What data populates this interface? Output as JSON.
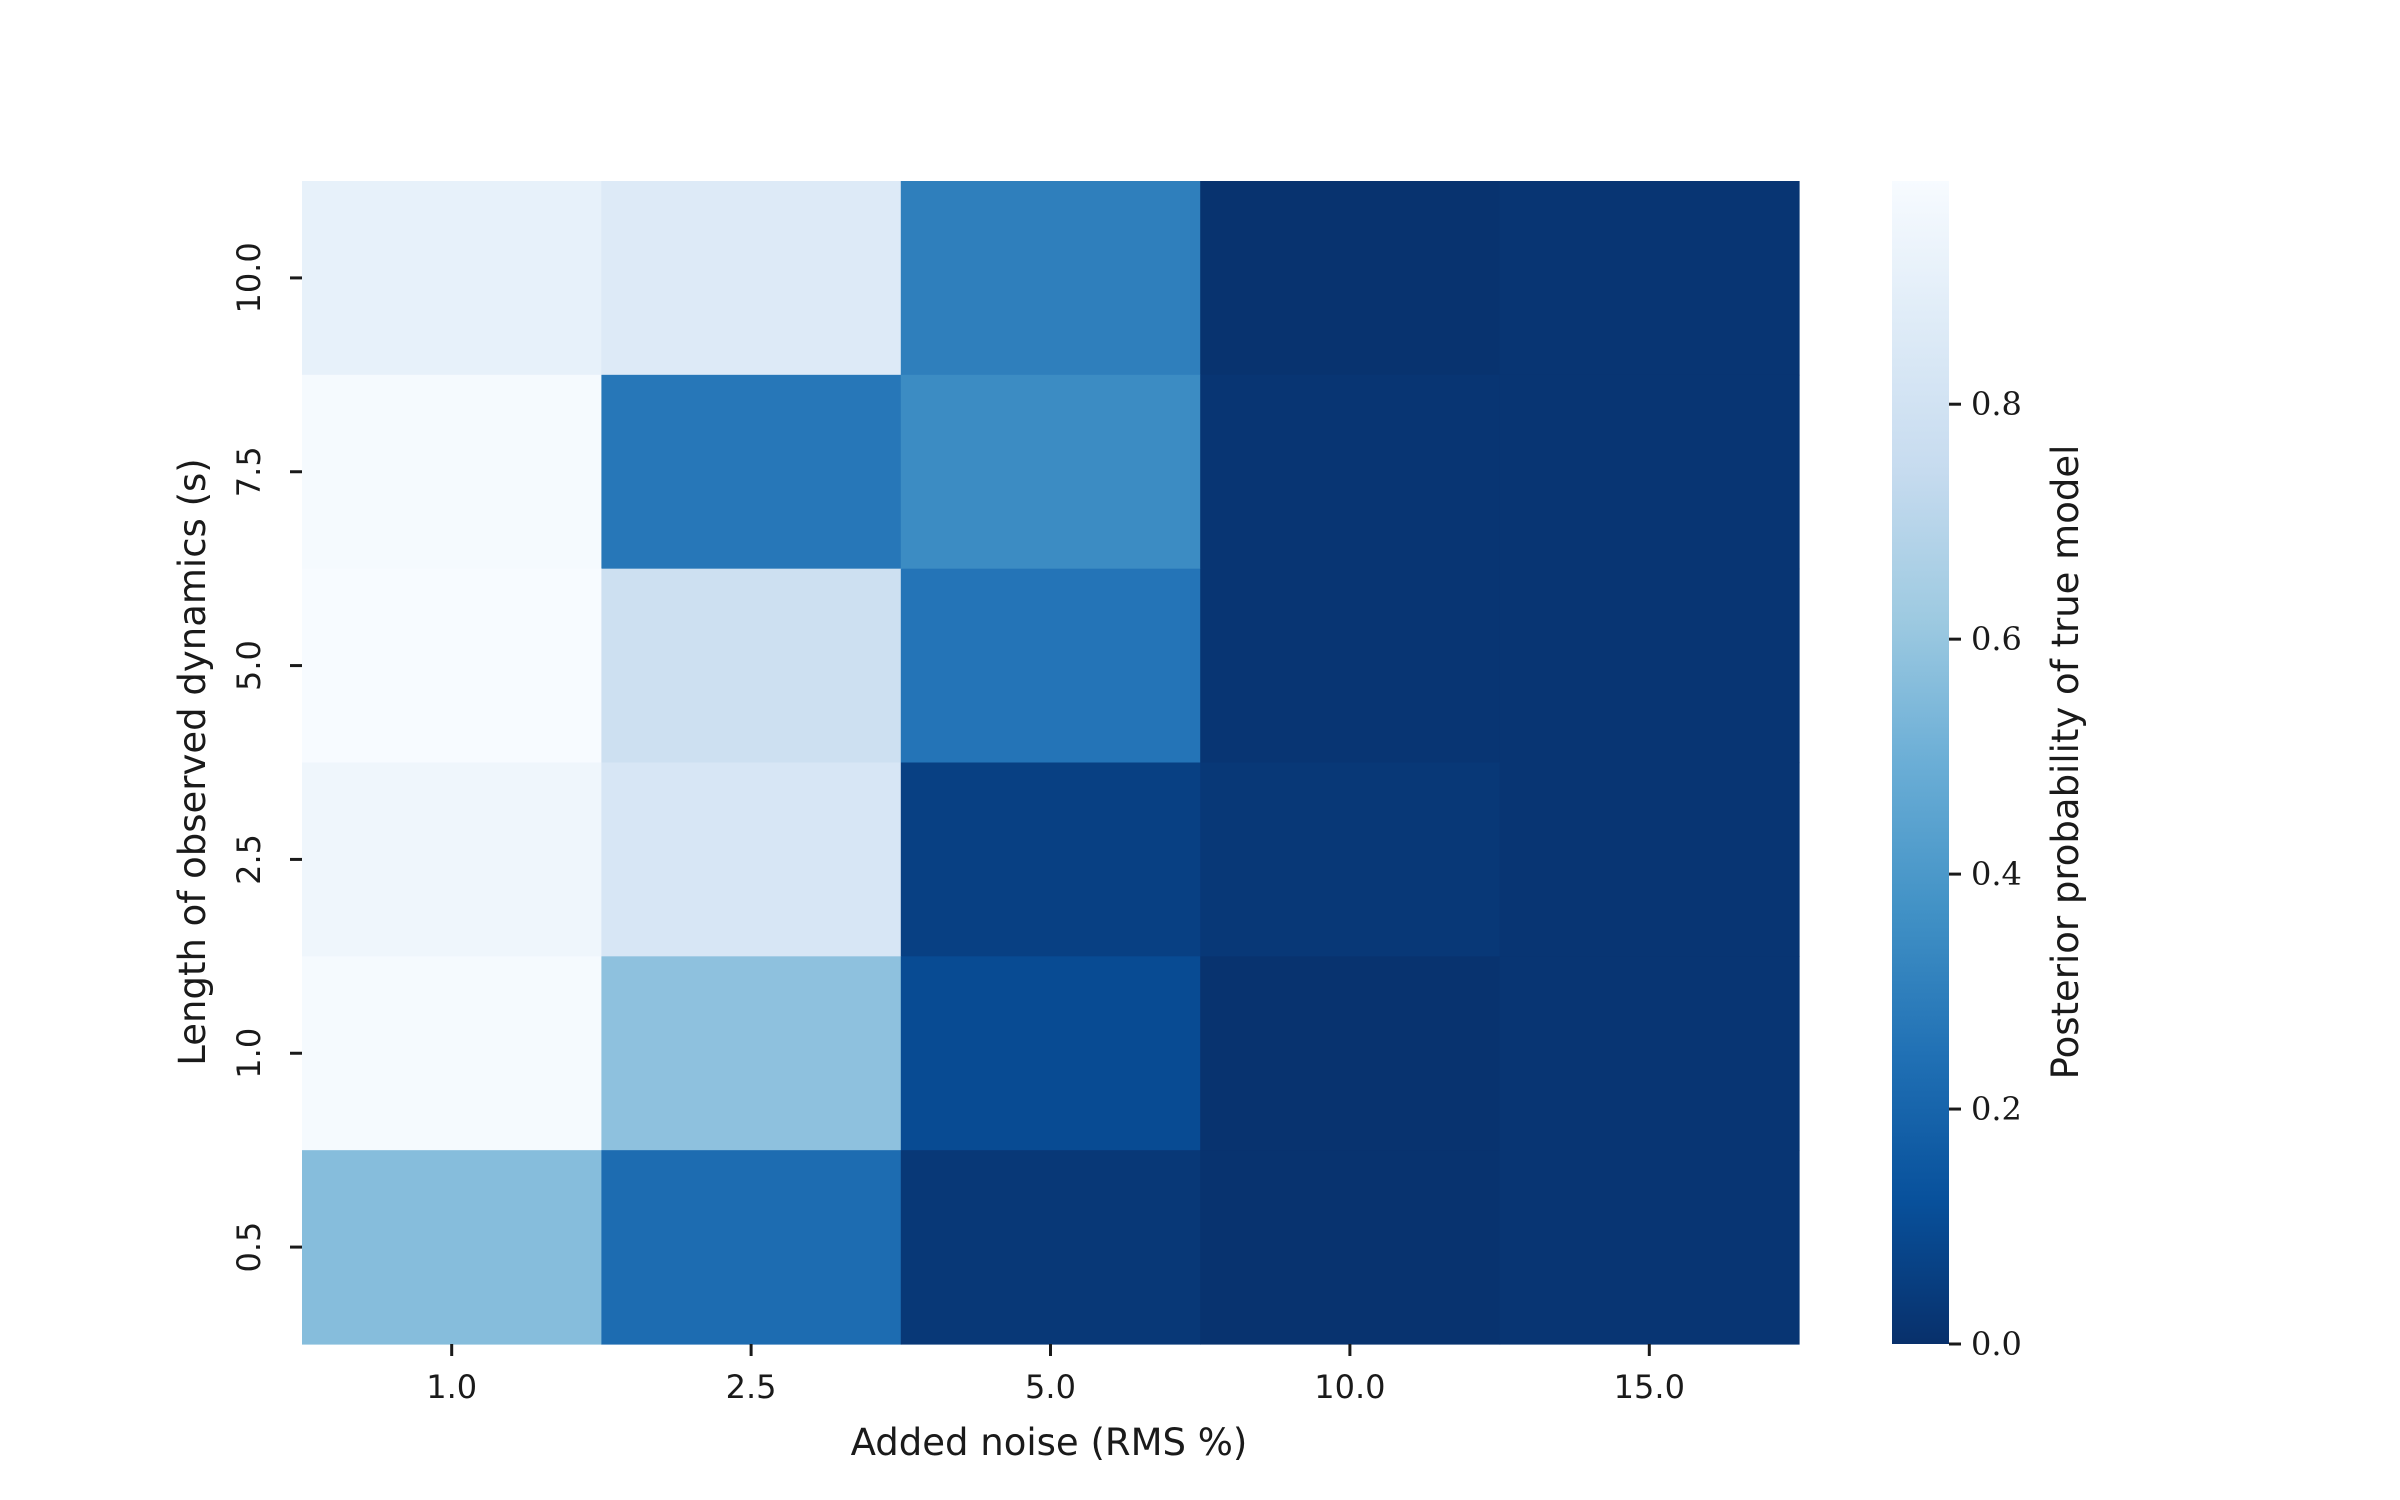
{
  "chart_data": {
    "type": "heatmap",
    "x_categories": [
      "1.0",
      "2.5",
      "5.0",
      "10.0",
      "15.0"
    ],
    "y_categories": [
      "10.0",
      "7.5",
      "5.0",
      "2.5",
      "1.0",
      "0.5"
    ],
    "values": [
      [
        0.91,
        0.86,
        0.3,
        0.01,
        0.02
      ],
      [
        0.98,
        0.27,
        0.35,
        0.02,
        0.02
      ],
      [
        0.99,
        0.78,
        0.26,
        0.02,
        0.02
      ],
      [
        0.95,
        0.83,
        0.06,
        0.03,
        0.02
      ],
      [
        0.98,
        0.58,
        0.1,
        0.01,
        0.02
      ],
      [
        0.56,
        0.23,
        0.03,
        0.01,
        0.02
      ]
    ],
    "xlabel": "Added noise (RMS %)",
    "ylabel": "Length of observed dynamics (s)",
    "colorbar": {
      "label": "Posterior probability of true model",
      "colormap": "Blues_r",
      "range": [
        0.0,
        0.99
      ],
      "ticks": [
        0.0,
        0.2,
        0.4,
        0.6,
        0.8
      ],
      "tick_labels": [
        "0.0",
        "0.2",
        "0.4",
        "0.6",
        "0.8"
      ]
    },
    "grid": false
  }
}
